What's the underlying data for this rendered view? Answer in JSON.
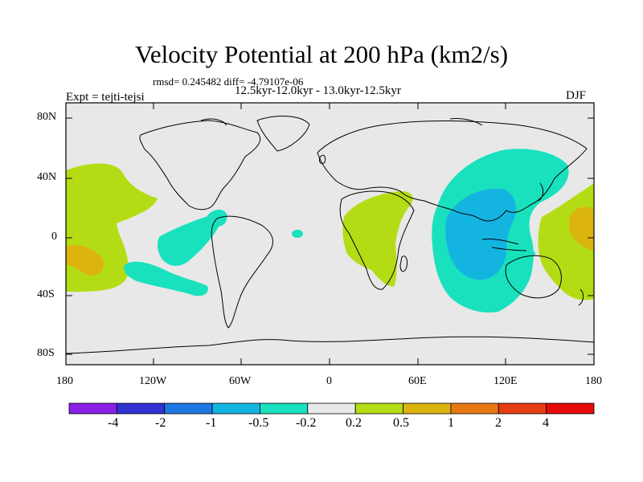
{
  "title": "Velocity Potential at 200 hPa (km2/s)",
  "stats_line": "rmsd= 0.245482  diff= -4.79107e-06",
  "period_line": "12.5kyr-12.0kyr - 13.0kyr-12.5kyr",
  "left_label": "Expt = tejti-tejsi",
  "right_label": "DJF",
  "lat_ticks": [
    "80N",
    "40N",
    "0",
    "40S",
    "80S"
  ],
  "lon_ticks": [
    "180",
    "120W",
    "60W",
    "0",
    "60E",
    "120E",
    "180"
  ],
  "colorbar": {
    "labels": [
      "-4",
      "-2",
      "-1",
      "-0.5",
      "-0.2",
      "0.2",
      "0.5",
      "1",
      "2",
      "4"
    ],
    "colors": [
      "#8a1fe6",
      "#3232d2",
      "#1e78e1",
      "#14b4e1",
      "#19e1be",
      "#e8e8e8",
      "#b4dc14",
      "#dcb40f",
      "#e67814",
      "#e63c14",
      "#e60a0a"
    ]
  },
  "palette": {
    "background_field": "#e8e8e8",
    "positive_weak": "#b4dc14",
    "positive_mid": "#dcb40f",
    "negative_weak": "#19e1be",
    "negative_mid": "#14b4e1"
  }
}
